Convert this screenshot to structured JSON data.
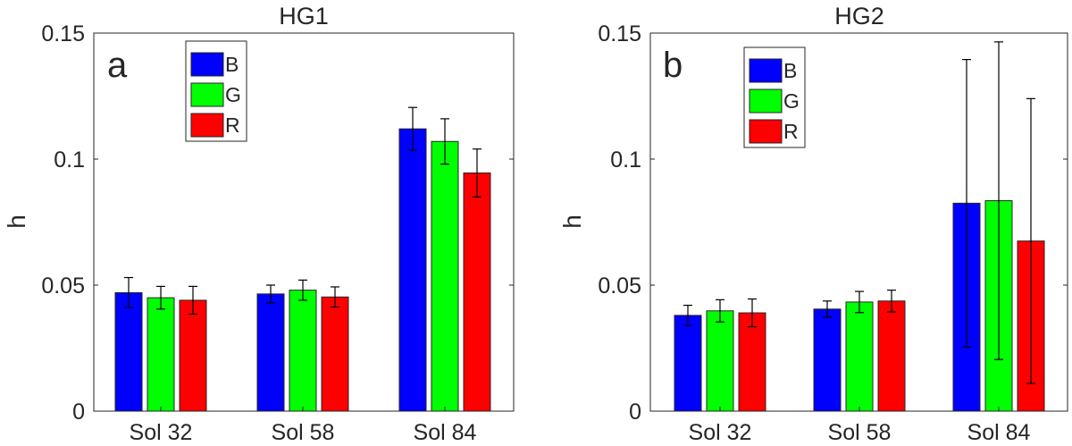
{
  "chart_data": [
    {
      "type": "bar",
      "panel_label": "a",
      "title": "HG1",
      "xlabel": "",
      "ylabel": "h",
      "ylim": [
        0,
        0.15
      ],
      "yticks": [
        0,
        0.05,
        0.1,
        0.15
      ],
      "ytick_labels": [
        "0",
        "0.05",
        "0.1",
        "0.15"
      ],
      "categories": [
        "Sol 32",
        "Sol 58",
        "Sol 84"
      ],
      "legend_position": "top-center",
      "series": [
        {
          "name": "B",
          "color": "#0000ff",
          "values": [
            0.047,
            0.0465,
            0.112
          ],
          "errors": [
            0.006,
            0.0035,
            0.0085
          ]
        },
        {
          "name": "G",
          "color": "#00ff00",
          "values": [
            0.045,
            0.048,
            0.107
          ],
          "errors": [
            0.0045,
            0.004,
            0.009
          ]
        },
        {
          "name": "R",
          "color": "#ff0000",
          "values": [
            0.044,
            0.0453,
            0.0945
          ],
          "errors": [
            0.0055,
            0.004,
            0.0095
          ]
        }
      ]
    },
    {
      "type": "bar",
      "panel_label": "b",
      "title": "HG2",
      "xlabel": "",
      "ylabel": "h",
      "ylim": [
        0,
        0.15
      ],
      "yticks": [
        0,
        0.05,
        0.1,
        0.15
      ],
      "ytick_labels": [
        "0",
        "0.05",
        "0.1",
        "0.15"
      ],
      "categories": [
        "Sol 32",
        "Sol 58",
        "Sol 84"
      ],
      "legend_position": "top-center",
      "series": [
        {
          "name": "B",
          "color": "#0000ff",
          "values": [
            0.038,
            0.0405,
            0.0825
          ],
          "errors": [
            0.004,
            0.0032,
            0.057
          ]
        },
        {
          "name": "G",
          "color": "#00ff00",
          "values": [
            0.0398,
            0.0433,
            0.0835
          ],
          "errors": [
            0.0044,
            0.0042,
            0.063
          ]
        },
        {
          "name": "R",
          "color": "#ff0000",
          "values": [
            0.039,
            0.0437,
            0.0675
          ],
          "errors": [
            0.0055,
            0.0043,
            0.0565
          ]
        }
      ]
    }
  ]
}
